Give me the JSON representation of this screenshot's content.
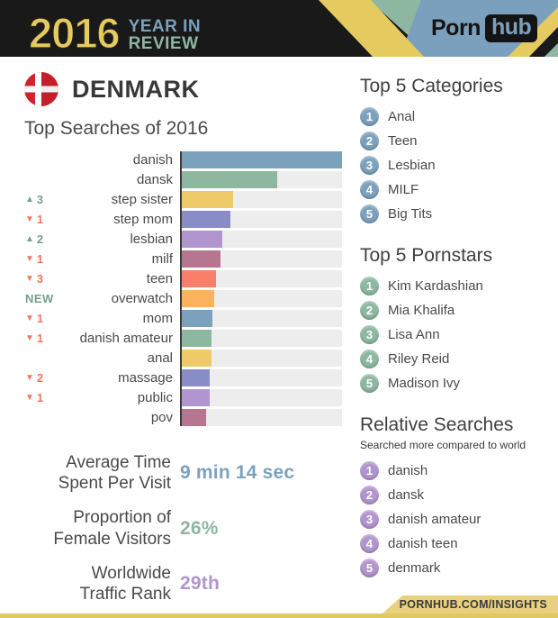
{
  "header": {
    "year": "2016",
    "title_line1": "YEAR IN",
    "title_line2": "REVIEW",
    "brand_porn": "Porn",
    "brand_hub": "hub",
    "colors": {
      "dark": "#191919",
      "yellow": "#e4ca5f",
      "blue": "#7ba0bd",
      "green": "#8db7a0"
    }
  },
  "country": {
    "name": "DENMARK",
    "flag": "denmark",
    "flag_red": "#d0222d"
  },
  "chart_data": {
    "type": "bar",
    "orientation": "horizontal",
    "title": "Top Searches of 2016",
    "categories": [
      "danish",
      "dansk",
      "step sister",
      "step mom",
      "lesbian",
      "milf",
      "teen",
      "overwatch",
      "mom",
      "danish amateur",
      "anal",
      "massage",
      "public",
      "pov"
    ],
    "values": [
      100,
      60,
      33,
      31,
      26,
      25,
      22,
      21,
      20,
      19.5,
      19.5,
      18.5,
      18.5,
      16
    ],
    "value_unit": "relative search volume, % of top search",
    "xlim": [
      0,
      100
    ],
    "grid": false,
    "legend": "none",
    "changes": [
      {
        "dir": "none",
        "num": ""
      },
      {
        "dir": "none",
        "num": ""
      },
      {
        "dir": "up",
        "num": "3"
      },
      {
        "dir": "down",
        "num": "1"
      },
      {
        "dir": "up",
        "num": "2"
      },
      {
        "dir": "down",
        "num": "1"
      },
      {
        "dir": "down",
        "num": "3"
      },
      {
        "dir": "new",
        "num": ""
      },
      {
        "dir": "down",
        "num": "1"
      },
      {
        "dir": "down",
        "num": "1"
      },
      {
        "dir": "none",
        "num": ""
      },
      {
        "dir": "down",
        "num": "2"
      },
      {
        "dir": "down",
        "num": "1"
      },
      {
        "dir": "none",
        "num": ""
      }
    ],
    "new_label": "NEW",
    "palette": [
      "#7ca1bd",
      "#8db7a0",
      "#eeca68",
      "#8a8cc8",
      "#b095ce",
      "#b7768f",
      "#f8806a",
      "#fdb25f"
    ],
    "track_color": "#ededed",
    "up_color": "#74a189",
    "down_color": "#f4765c"
  },
  "stats": [
    {
      "label_line1": "Average Time",
      "label_line2": "Spent Per Visit",
      "value": "9 min 14 sec",
      "color": "#7ca1bd"
    },
    {
      "label_line1": "Proportion of",
      "label_line2": "Female Visitors",
      "value": "26%",
      "color": "#8db7a0"
    },
    {
      "label_line1": "Worldwide",
      "label_line2": "Traffic Rank",
      "value": "29th",
      "color": "#b095ce"
    }
  ],
  "side_lists": [
    {
      "title": "Top 5 Categories",
      "subtitle": "",
      "badge_color": "#7ca1bd",
      "items": [
        "Anal",
        "Teen",
        "Lesbian",
        "MILF",
        "Big Tits"
      ]
    },
    {
      "title": "Top 5 Pornstars",
      "subtitle": "",
      "badge_color": "#8db7a0",
      "items": [
        "Kim Kardashian",
        "Mia Khalifa",
        "Lisa Ann",
        "Riley Reid",
        "Madison Ivy"
      ]
    },
    {
      "title": "Relative Searches",
      "subtitle": "Searched more compared to world",
      "badge_color": "#b095ce",
      "items": [
        "danish",
        "dansk",
        "danish amateur",
        "danish teen",
        "denmark"
      ]
    }
  ],
  "footer": {
    "link": "PORNHUB.COM/INSIGHTS"
  }
}
